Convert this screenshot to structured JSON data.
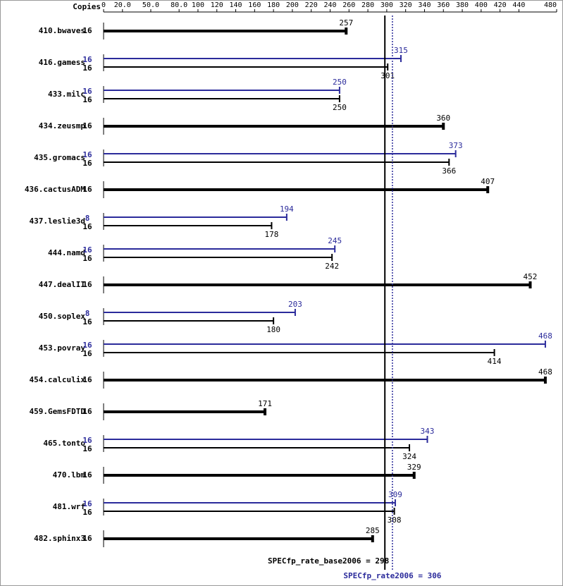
{
  "chart_data": {
    "type": "spec-bar",
    "axis_header": "Copies",
    "categories": [
      "410.bwaves",
      "416.gamess",
      "433.milc",
      "434.zeusmp",
      "435.gromacs",
      "436.cactusADM",
      "437.leslie3d",
      "444.namd",
      "447.dealII",
      "450.soplex",
      "453.povray",
      "454.calculix",
      "459.GemsFDTD",
      "465.tonto",
      "470.lbm",
      "481.wrf",
      "482.sphinx3"
    ],
    "series": [
      {
        "color": "#000000",
        "copies": [
          16,
          16,
          16,
          16,
          16,
          16,
          16,
          16,
          16,
          16,
          16,
          16,
          16,
          16,
          16,
          16,
          16
        ],
        "values": [
          257,
          301,
          250,
          360,
          366,
          407,
          178,
          242,
          452,
          180,
          414,
          468,
          171,
          324,
          329,
          308,
          285
        ]
      },
      {
        "color": "#2b2b9b",
        "copies": [
          null,
          16,
          16,
          null,
          16,
          null,
          8,
          16,
          null,
          8,
          16,
          null,
          null,
          16,
          null,
          16,
          null
        ],
        "values": [
          null,
          315,
          250,
          null,
          373,
          null,
          194,
          245,
          null,
          203,
          468,
          null,
          null,
          343,
          null,
          309,
          null
        ]
      }
    ],
    "xlim": [
      0,
      480
    ],
    "xticks": [
      0,
      {
        "value": 20,
        "label": "20.0"
      },
      {
        "value": 50,
        "label": "50.0"
      },
      {
        "value": 80,
        "label": "80.0"
      },
      100,
      120,
      140,
      160,
      180,
      200,
      220,
      240,
      260,
      280,
      300,
      320,
      340,
      360,
      380,
      400,
      420,
      440,
      480
    ],
    "reference_lines": [
      {
        "label": "SPECfp_rate_base2006 = 298",
        "value": 298,
        "color": "#000000",
        "style": "solid"
      },
      {
        "label": "SPECfp_rate2006 = 306",
        "value": 306,
        "color": "#2b2b9b",
        "style": "dotted"
      }
    ]
  }
}
